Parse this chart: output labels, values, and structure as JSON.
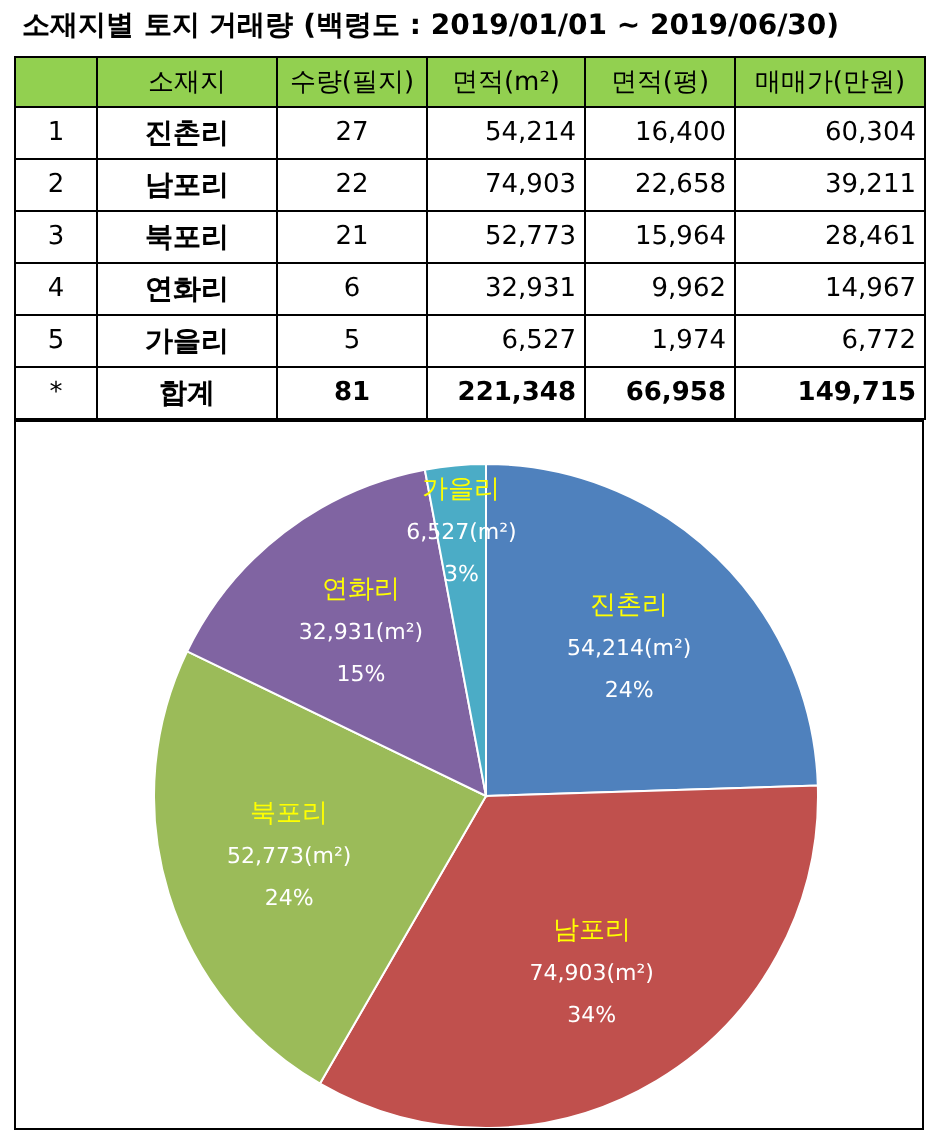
{
  "chart_data": [
    {
      "type": "heatmap",
      "title": "소재지별 토지 거래량 (백령도 : 2019/01/01 ~ 2019/06/30)",
      "categories": [
        "수량(필지)",
        "면적(m²)",
        "면적(평)",
        "매매가(만원)"
      ],
      "y_categories": [
        "1",
        "2",
        "3",
        "4",
        "5",
        "*"
      ],
      "y2label": "소재지",
      "y2_categories": [
        "진촌리",
        "남포리",
        "북포리",
        "연화리",
        "가을리",
        "합계"
      ],
      "cells": [
        [
          27,
          54214,
          16400,
          60304
        ],
        [
          22,
          74903,
          22658,
          39211
        ],
        [
          21,
          52773,
          15964,
          28461
        ],
        [
          6,
          32931,
          9962,
          14967
        ],
        [
          5,
          6527,
          1974,
          6772
        ],
        [
          81,
          221348,
          66958,
          149715
        ]
      ],
      "cell_labels": [
        [
          "27",
          "54,214",
          "16,400",
          "60,304"
        ],
        [
          "22",
          "74,903",
          "22,658",
          "39,211"
        ],
        [
          "21",
          "52,773",
          "15,964",
          "28,461"
        ],
        [
          "6",
          "32,931",
          "9,962",
          "14,967"
        ],
        [
          "5",
          "6,527",
          "1,974",
          "6,772"
        ],
        [
          "81",
          "221,348",
          "66,958",
          "149,715"
        ]
      ]
    },
    {
      "type": "pie",
      "categories": [
        "진촌리",
        "남포리",
        "북포리",
        "연화리",
        "가을리"
      ],
      "values": [
        54214,
        74903,
        52773,
        32931,
        6527
      ],
      "colors": [
        "#4f81bd",
        "#c0504d",
        "#9bbb59",
        "#8064a2",
        "#4bacc6"
      ],
      "value_labels": [
        "54,214(m²)\n24%",
        "74,903(m²)\n34%",
        "52,773(m²)\n24%",
        "32,931(m²)\n15%",
        "6,527(m²)\n3%"
      ]
    }
  ]
}
